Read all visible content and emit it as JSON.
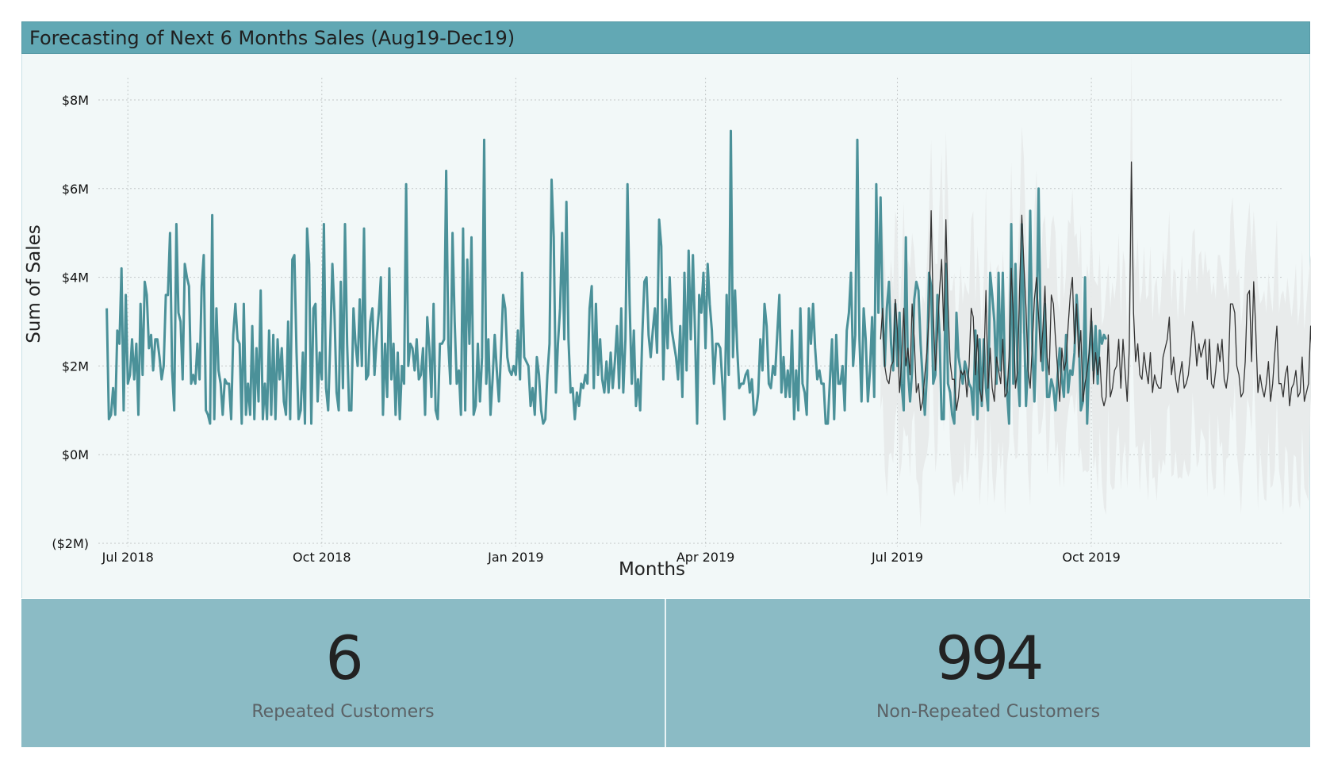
{
  "title": "Forecasting of Next 6 Months Sales (Aug19-Dec19)",
  "colors": {
    "actual_line": "#4b9199",
    "forecast_line": "#333333",
    "confidence_band": "#e7eaea",
    "title_bar": "#62a8b4",
    "kpi_bg": "#8bbbc5"
  },
  "chart_data": {
    "type": "line",
    "xlabel": "Months",
    "ylabel": "Sum of Sales",
    "ylim": [
      -2,
      8.5
    ],
    "y_ticks": [
      -2,
      0,
      2,
      4,
      6,
      8
    ],
    "y_tick_labels": [
      "($2M)",
      "$0M",
      "$2M",
      "$4M",
      "$6M",
      "$8M"
    ],
    "x_tick_labels": [
      "Jul 2018",
      "Oct 2018",
      "Jan 2019",
      "Apr 2019",
      "Jul 2019",
      "Oct 2019"
    ],
    "x_tick_dates": [
      "2018-07-01",
      "2018-10-01",
      "2019-01-01",
      "2019-04-01",
      "2019-07-01",
      "2019-10-01"
    ],
    "xlim": [
      "2018-06-17",
      "2019-12-31"
    ],
    "grid": true,
    "series": [
      {
        "role": "actual",
        "start": "2018-06-21",
        "step_days": 1,
        "values": [
          3.3,
          0.8,
          0.9,
          1.5,
          0.9,
          2.8,
          2.5,
          4.2,
          1.0,
          3.6,
          1.6,
          1.8,
          2.6,
          1.7,
          2.5,
          0.9,
          3.4,
          1.8,
          3.9,
          3.6,
          2.4,
          2.7,
          1.9,
          2.6,
          2.6,
          2.2,
          1.7,
          2.0,
          3.6,
          3.6,
          5.0,
          1.9,
          1.0,
          5.2,
          3.2,
          3.0,
          1.7,
          4.3,
          4.0,
          3.8,
          1.6,
          1.8,
          1.6,
          2.5,
          1.7,
          3.8,
          4.5,
          1.0,
          0.9,
          0.7,
          5.4,
          0.8,
          3.3,
          1.9,
          1.6,
          0.9,
          1.7,
          1.6,
          1.6,
          0.8,
          2.7,
          3.4,
          2.6,
          2.5,
          0.7,
          3.4,
          0.9,
          1.6,
          0.9,
          2.9,
          0.8,
          2.4,
          1.2,
          3.7,
          0.8,
          1.6,
          0.8,
          2.8,
          0.9,
          2.7,
          0.8,
          2.6,
          1.7,
          2.4,
          1.2,
          0.9,
          3.0,
          0.8,
          4.4,
          4.5,
          2.3,
          0.8,
          1.0,
          2.3,
          0.7,
          5.1,
          4.3,
          0.7,
          3.3,
          3.4,
          1.2,
          2.3,
          1.7,
          5.2,
          1.5,
          1.0,
          2.5,
          4.3,
          3.2,
          1.4,
          1.0,
          3.9,
          1.5,
          5.2,
          2.5,
          1.0,
          1.0,
          3.3,
          2.5,
          2.0,
          3.5,
          2.0,
          5.1,
          1.7,
          1.8,
          3.0,
          3.3,
          1.8,
          2.6,
          3.2,
          4.0,
          0.9,
          2.5,
          1.3,
          4.2,
          1.7,
          2.5,
          0.9,
          2.3,
          0.8,
          2.0,
          1.6,
          6.1,
          2.0,
          2.5,
          2.4,
          1.9,
          2.6,
          1.7,
          1.8,
          2.4,
          0.9,
          3.1,
          2.4,
          1.3,
          3.4,
          1.0,
          0.8,
          2.5,
          2.5,
          2.6,
          6.4,
          2.5,
          1.6,
          5.0,
          3.0,
          1.6,
          1.9,
          0.9,
          5.1,
          1.0,
          4.4,
          2.5,
          4.9,
          0.9,
          1.1,
          2.5,
          1.2,
          2.2,
          7.1,
          1.6,
          2.6,
          0.9,
          1.7,
          2.7,
          1.9,
          1.2,
          2.3,
          3.6,
          3.3,
          2.2,
          1.9,
          1.8,
          2.0,
          1.8,
          2.8,
          1.7,
          4.1,
          2.2,
          2.1,
          2.0,
          1.1,
          1.5,
          0.9,
          2.2,
          1.8,
          1.0,
          0.7,
          0.8,
          1.8,
          2.5,
          6.2,
          4.9,
          1.4,
          2.5,
          3.3,
          5.0,
          2.6,
          5.7,
          2.6,
          1.4,
          1.5,
          0.8,
          1.4,
          1.1,
          1.6,
          1.5,
          1.8,
          1.6,
          3.3,
          3.8,
          1.5,
          3.4,
          1.8,
          2.6,
          1.7,
          1.4,
          2.1,
          1.4,
          2.3,
          1.5,
          2.1,
          2.9,
          1.5,
          3.3,
          1.4,
          2.6,
          6.1,
          3.4,
          1.6,
          2.8,
          1.1,
          1.7,
          1.0,
          2.7,
          3.9,
          4.0,
          2.7,
          2.2,
          2.8,
          3.3,
          2.3,
          5.3,
          4.7,
          1.7,
          3.5,
          2.4,
          4.0,
          2.8,
          2.5,
          2.2,
          1.7,
          2.9,
          1.3,
          4.1,
          1.9,
          4.6,
          2.6,
          4.5,
          2.8,
          0.7,
          3.6,
          3.2,
          4.1,
          2.4,
          4.3,
          3.4,
          2.8,
          1.6,
          2.5,
          2.5,
          2.4,
          1.6,
          0.8,
          3.6,
          1.8,
          7.3,
          2.2,
          3.7,
          2.4,
          1.5,
          1.6,
          1.6,
          1.8,
          1.9,
          1.4,
          1.7,
          0.9,
          1.0,
          1.4,
          2.6,
          1.9,
          3.4,
          2.9,
          1.6,
          1.5,
          2.0,
          1.8,
          2.7,
          3.6,
          1.4,
          2.2,
          1.3,
          1.9,
          1.3,
          2.8,
          0.8,
          1.9,
          1.0,
          3.3,
          1.6,
          1.4,
          0.9,
          3.3,
          2.5,
          3.4,
          2.4,
          1.7,
          1.9,
          1.6,
          1.6,
          0.7,
          0.7,
          1.7,
          2.6,
          0.8,
          2.7,
          1.6,
          1.6,
          2.0,
          1.0,
          2.8,
          3.2,
          4.1,
          2.0,
          2.7,
          7.1,
          2.6,
          1.2,
          3.3,
          2.6,
          1.2,
          1.9,
          3.1,
          1.3,
          6.1,
          3.2,
          5.8,
          3.2,
          2.0,
          3.3,
          3.9,
          2.5,
          1.9,
          3.4,
          2.0,
          3.2,
          1.6,
          1.0,
          4.9,
          1.9,
          1.2,
          1.9,
          3.5,
          3.9,
          3.7,
          2.5,
          1.7,
          0.9,
          1.8,
          4.1,
          3.8,
          1.6,
          1.8,
          3.6,
          2.7,
          0.8,
          0.8,
          4.3,
          1.6,
          1.4,
          0.9,
          0.7,
          3.2,
          2.2,
          1.9,
          1.6,
          2.1,
          1.9,
          1.6,
          1.5,
          0.9,
          2.8,
          0.8,
          2.6,
          1.1,
          2.6,
          1.5,
          1.0,
          4.1,
          3.6,
          3.0,
          1.6,
          4.1,
          1.9,
          4.1,
          1.8,
          1.4,
          0.7,
          5.2,
          1.6,
          4.3,
          1.9,
          1.1,
          5.2,
          3.2,
          1.1,
          2.1,
          5.5,
          2.4,
          1.2,
          2.9,
          6.0,
          2.6,
          1.9,
          3.4,
          1.3,
          1.3,
          1.7,
          1.5,
          1.0,
          1.8,
          2.4,
          1.7,
          1.3,
          2.7,
          1.4,
          1.9,
          1.8,
          2.3,
          3.6,
          2.8,
          1.0,
          1.2,
          4.0,
          0.7,
          2.2,
          3.0,
          1.9,
          2.9,
          1.6,
          2.8,
          2.5,
          2.7,
          2.6
        ]
      },
      {
        "role": "forecast",
        "start": "2019-06-23",
        "step_days": 1,
        "values": [
          2.6,
          3.3,
          2.0,
          1.7,
          1.6,
          2.0,
          2.1,
          3.5,
          2.8,
          1.4,
          2.1,
          3.3,
          2.0,
          2.4,
          1.8,
          3.4,
          2.6,
          1.4,
          1.6,
          1.0,
          1.2,
          1.8,
          2.3,
          3.1,
          5.5,
          3.2,
          1.9,
          2.7,
          3.7,
          4.4,
          2.8,
          5.3,
          3.4,
          2.1,
          1.7,
          1.7,
          1.0,
          1.3,
          1.9,
          1.8,
          1.9,
          1.3,
          2.0,
          3.3,
          3.1,
          1.8,
          2.7,
          1.5,
          1.2,
          2.0,
          3.7,
          1.5,
          2.4,
          1.5,
          1.2,
          2.2,
          1.9,
          1.6,
          2.6,
          1.3,
          1.4,
          2.2,
          4.2,
          3.1,
          1.5,
          1.9,
          3.8,
          5.4,
          4.3,
          3.3,
          1.9,
          1.5,
          2.5,
          3.5,
          4.0,
          3.1,
          2.1,
          2.8,
          3.8,
          2.2,
          1.8,
          3.6,
          3.4,
          2.6,
          1.9,
          1.2,
          2.4,
          1.9,
          2.1,
          2.9,
          3.6,
          4.0,
          2.5,
          3.4,
          2.2,
          2.8,
          1.2,
          1.6,
          1.9,
          2.3,
          3.3,
          1.6,
          2.3,
          1.8,
          2.2,
          1.3,
          1.1,
          1.3,
          2.7,
          1.3,
          1.5,
          1.9,
          2.0,
          2.6,
          1.5,
          2.6,
          1.9,
          1.2,
          2.4,
          6.6,
          3.2,
          2.1,
          2.5,
          1.8,
          1.7,
          2.3,
          1.9,
          1.6,
          2.3,
          1.4,
          1.8,
          1.6,
          1.5,
          1.5,
          2.2,
          2.4,
          2.6,
          3.1,
          1.8,
          2.2,
          1.7,
          1.4,
          1.8,
          2.1,
          1.5,
          1.6,
          1.8,
          2.3,
          3.0,
          2.7,
          2.0,
          2.5,
          2.2,
          2.4,
          2.6,
          1.7,
          2.6,
          1.6,
          1.5,
          1.9,
          2.5,
          2.1,
          2.6,
          1.7,
          1.5,
          1.9,
          3.4,
          3.4,
          3.2,
          2.0,
          1.8,
          1.3,
          1.4,
          2.1,
          3.6,
          3.7,
          2.1,
          3.9,
          2.8,
          1.4,
          1.8,
          1.5,
          1.3,
          1.6,
          2.1,
          1.2,
          1.6,
          2.3,
          2.9,
          1.6,
          1.6,
          1.3,
          1.8,
          2.0,
          1.1,
          1.5,
          1.6,
          1.9,
          1.3,
          1.4,
          2.2,
          1.2,
          1.4,
          1.6,
          2.9,
          1.9,
          1.6,
          2.5,
          1.6,
          1.3,
          1.6,
          2.2,
          1.8,
          2.1,
          1.5,
          1.8,
          1.7,
          1.6,
          1.5,
          1.7,
          2.5,
          2.1,
          2.3,
          1.7,
          1.9,
          1.8,
          2.2
        ]
      }
    ]
  },
  "kpis": [
    {
      "value": "6",
      "label": "Repeated Customers"
    },
    {
      "value": "994",
      "label": "Non-Repeated Customers"
    }
  ]
}
